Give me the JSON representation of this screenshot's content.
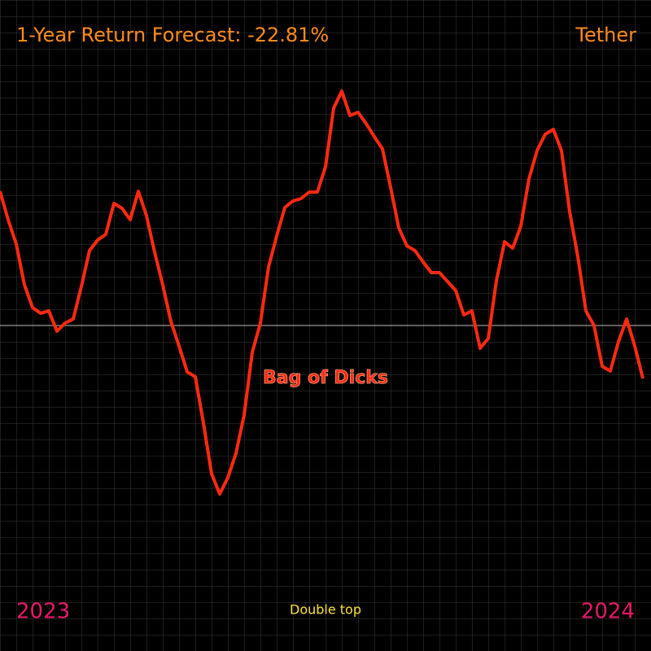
{
  "chart_data": {
    "type": "line",
    "title": "1-Year Return Forecast: -22.81%",
    "asset": "Tether",
    "start_label": "2023",
    "end_label": "2024",
    "annotation_bottom": "Double top",
    "annotation_line": "Bag of Dicks",
    "ylim": [
      -400,
      400
    ],
    "grid": true,
    "series": [
      {
        "name": "Bag of Dicks",
        "color": "#ff2a10",
        "values": [
          165,
          130,
          100,
          50,
          22,
          15,
          18,
          -7,
          3,
          8,
          48,
          92,
          105,
          112,
          150,
          144,
          130,
          165,
          135,
          90,
          50,
          5,
          -25,
          -57,
          -63,
          -120,
          -182,
          -207,
          -187,
          -157,
          -110,
          -33,
          3,
          72,
          110,
          145,
          153,
          156,
          164,
          164,
          195,
          267,
          288,
          258,
          262,
          248,
          232,
          217,
          170,
          120,
          98,
          92,
          78,
          65,
          65,
          54,
          43,
          13,
          18,
          -28,
          -16,
          55,
          103,
          95,
          122,
          180,
          215,
          235,
          241,
          215,
          140,
          85,
          18,
          0,
          -50,
          -56,
          -20,
          8,
          -25,
          -65
        ]
      }
    ]
  }
}
